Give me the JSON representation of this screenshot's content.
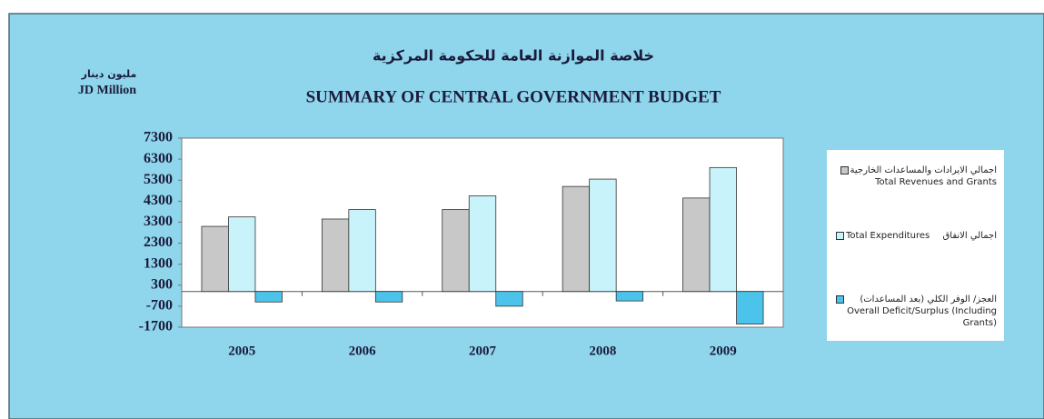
{
  "chart_data": {
    "type": "bar",
    "title_ar": "خلاصة الموازنة العامة للحكومة المركزية",
    "title": "SUMMARY OF CENTRAL GOVERNMENT BUDGET",
    "unit_ar": "مليون دينار",
    "unit": "JD Million",
    "categories": [
      "2005",
      "2006",
      "2007",
      "2008",
      "2009"
    ],
    "series": [
      {
        "name": "Total Revenues and Grants",
        "name_ar": "اجمالي الايرادات والمساعدات الخارجية",
        "color": "#c8c8c8",
        "values": [
          3100,
          3450,
          3900,
          5000,
          4450
        ]
      },
      {
        "name": "Total Expenditures",
        "name_ar": "اجمالي الانفاق",
        "color": "#c8f3fb",
        "values": [
          3550,
          3900,
          4550,
          5350,
          5900
        ]
      },
      {
        "name": "Overall Deficit/Surplus  (Including Grants)",
        "name_ar": "العجز/ الوفر الكلي (بعد المساعدات)",
        "color": "#4cc3ea",
        "values": [
          -500,
          -500,
          -700,
          -450,
          -1550
        ]
      }
    ],
    "ylim": [
      -1700,
      7300
    ],
    "yticks": [
      7300,
      6300,
      5300,
      4300,
      3300,
      2300,
      1300,
      300,
      -700,
      -1700
    ],
    "grid": false
  }
}
